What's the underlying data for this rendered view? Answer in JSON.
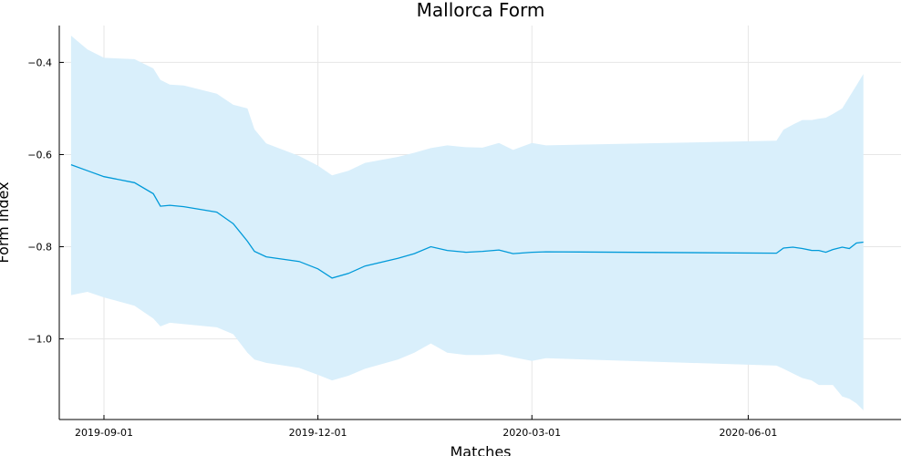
{
  "chart_data": {
    "type": "line",
    "title": "Mallorca Form",
    "xlabel": "Matches",
    "ylabel": "Form index",
    "x_type": "date",
    "xlim": [
      "2019-08-13",
      "2020-08-05"
    ],
    "ylim": [
      -1.175,
      -0.32
    ],
    "x_ticks": [
      "2019-09-01",
      "2019-12-01",
      "2020-03-01",
      "2020-06-01"
    ],
    "y_ticks": [
      -1.0,
      -0.8,
      -0.6,
      -0.4
    ],
    "y_tick_labels": [
      "−1.0",
      "−0.8",
      "−0.6",
      "−0.4"
    ],
    "grid": true,
    "legend": "none",
    "colors": {
      "line": "#009AD9",
      "band": "#D9EFFB"
    },
    "series": [
      {
        "role": "mean",
        "x": [
          "2019-08-18",
          "2019-08-25",
          "2019-09-01",
          "2019-09-14",
          "2019-09-22",
          "2019-09-25",
          "2019-09-29",
          "2019-10-05",
          "2019-10-19",
          "2019-10-26",
          "2019-11-01",
          "2019-11-04",
          "2019-11-09",
          "2019-11-23",
          "2019-12-01",
          "2019-12-07",
          "2019-12-14",
          "2019-12-21",
          "2020-01-04",
          "2020-01-11",
          "2020-01-18",
          "2020-01-25",
          "2020-02-02",
          "2020-02-09",
          "2020-02-16",
          "2020-02-22",
          "2020-03-01",
          "2020-03-07",
          "2020-06-13",
          "2020-06-16",
          "2020-06-20",
          "2020-06-24",
          "2020-06-28",
          "2020-07-01",
          "2020-07-04",
          "2020-07-07",
          "2020-07-11",
          "2020-07-14",
          "2020-07-17",
          "2020-07-20"
        ],
        "y": [
          -0.622,
          -0.635,
          -0.648,
          -0.661,
          -0.685,
          -0.712,
          -0.71,
          -0.713,
          -0.725,
          -0.75,
          -0.788,
          -0.81,
          -0.822,
          -0.832,
          -0.848,
          -0.868,
          -0.858,
          -0.842,
          -0.825,
          -0.815,
          -0.8,
          -0.808,
          -0.812,
          -0.81,
          -0.807,
          -0.815,
          -0.812,
          -0.811,
          -0.814,
          -0.803,
          -0.801,
          -0.804,
          -0.808,
          -0.808,
          -0.812,
          -0.806,
          -0.801,
          -0.804,
          -0.792,
          -0.79
        ]
      },
      {
        "role": "band_upper",
        "x": [
          "2019-08-18",
          "2019-08-25",
          "2019-09-01",
          "2019-09-14",
          "2019-09-22",
          "2019-09-25",
          "2019-09-29",
          "2019-10-05",
          "2019-10-19",
          "2019-10-26",
          "2019-11-01",
          "2019-11-04",
          "2019-11-09",
          "2019-11-23",
          "2019-12-01",
          "2019-12-07",
          "2019-12-14",
          "2019-12-21",
          "2020-01-04",
          "2020-01-11",
          "2020-01-18",
          "2020-01-25",
          "2020-02-02",
          "2020-02-09",
          "2020-02-16",
          "2020-02-22",
          "2020-03-01",
          "2020-03-07",
          "2020-06-13",
          "2020-06-16",
          "2020-06-20",
          "2020-06-24",
          "2020-06-28",
          "2020-07-01",
          "2020-07-04",
          "2020-07-07",
          "2020-07-11",
          "2020-07-14",
          "2020-07-17",
          "2020-07-20"
        ],
        "y": [
          -0.342,
          -0.372,
          -0.39,
          -0.393,
          -0.413,
          -0.438,
          -0.448,
          -0.45,
          -0.468,
          -0.492,
          -0.5,
          -0.545,
          -0.576,
          -0.603,
          -0.624,
          -0.645,
          -0.635,
          -0.618,
          -0.605,
          -0.596,
          -0.586,
          -0.58,
          -0.584,
          -0.585,
          -0.575,
          -0.59,
          -0.575,
          -0.58,
          -0.57,
          -0.546,
          -0.535,
          -0.525,
          -0.525,
          -0.522,
          -0.52,
          -0.512,
          -0.5,
          -0.475,
          -0.45,
          -0.425
        ]
      },
      {
        "role": "band_lower",
        "x": [
          "2019-08-18",
          "2019-08-25",
          "2019-09-01",
          "2019-09-14",
          "2019-09-22",
          "2019-09-25",
          "2019-09-29",
          "2019-10-05",
          "2019-10-19",
          "2019-10-26",
          "2019-11-01",
          "2019-11-04",
          "2019-11-09",
          "2019-11-23",
          "2019-12-01",
          "2019-12-07",
          "2019-12-14",
          "2019-12-21",
          "2020-01-04",
          "2020-01-11",
          "2020-01-18",
          "2020-01-25",
          "2020-02-02",
          "2020-02-09",
          "2020-02-16",
          "2020-02-22",
          "2020-03-01",
          "2020-03-07",
          "2020-06-13",
          "2020-06-16",
          "2020-06-20",
          "2020-06-24",
          "2020-06-28",
          "2020-07-01",
          "2020-07-04",
          "2020-07-07",
          "2020-07-11",
          "2020-07-14",
          "2020-07-17",
          "2020-07-20"
        ],
        "y": [
          -0.905,
          -0.898,
          -0.91,
          -0.928,
          -0.956,
          -0.973,
          -0.965,
          -0.968,
          -0.975,
          -0.99,
          -1.03,
          -1.045,
          -1.052,
          -1.063,
          -1.078,
          -1.09,
          -1.08,
          -1.065,
          -1.045,
          -1.03,
          -1.01,
          -1.03,
          -1.035,
          -1.035,
          -1.033,
          -1.04,
          -1.048,
          -1.042,
          -1.058,
          -1.065,
          -1.075,
          -1.085,
          -1.09,
          -1.1,
          -1.1,
          -1.1,
          -1.125,
          -1.13,
          -1.14,
          -1.155
        ]
      }
    ]
  }
}
